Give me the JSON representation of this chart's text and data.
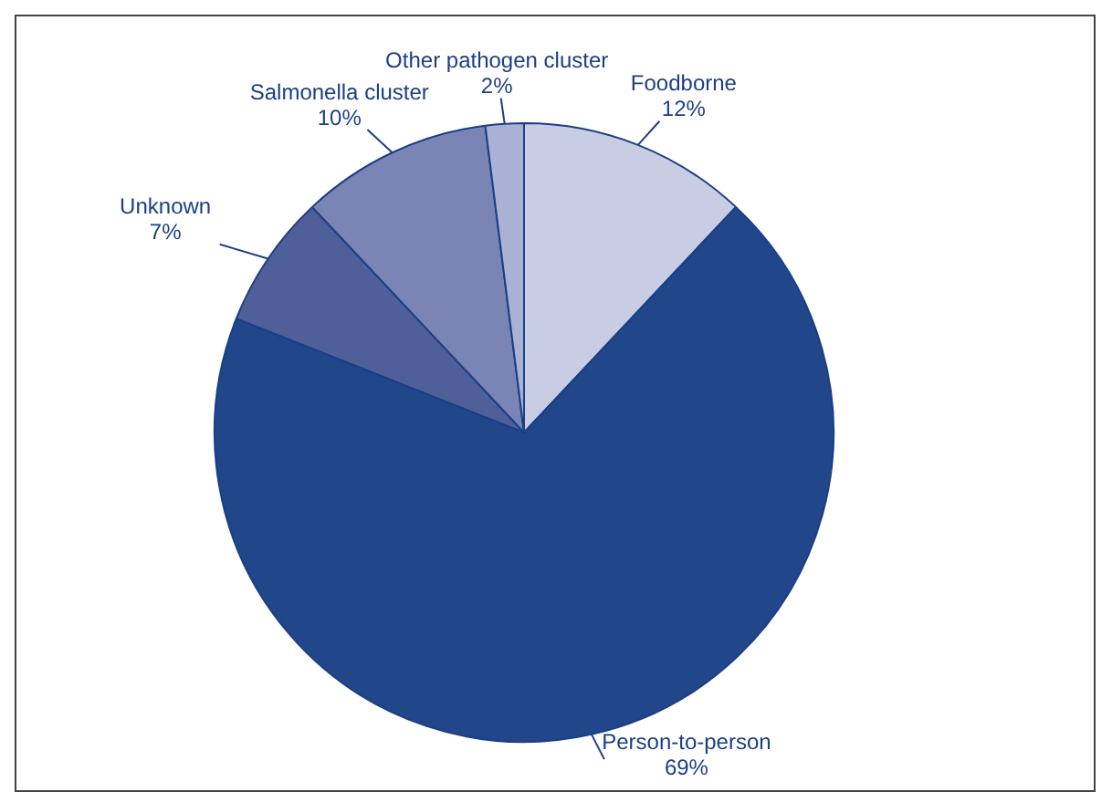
{
  "chart_data": {
    "type": "pie",
    "categories": [
      "Foodborne",
      "Person-to-person",
      "Unknown",
      "Salmonella cluster",
      "Other pathogen cluster"
    ],
    "values": [
      12,
      69,
      7,
      10,
      2
    ],
    "value_labels": [
      "12%",
      "69%",
      "7%",
      "10%",
      "2%"
    ],
    "colors": [
      "#c9cde3",
      "#22468a",
      "#4f5f9a",
      "#7a84b5",
      "#a9b1d4"
    ],
    "legend": false
  }
}
